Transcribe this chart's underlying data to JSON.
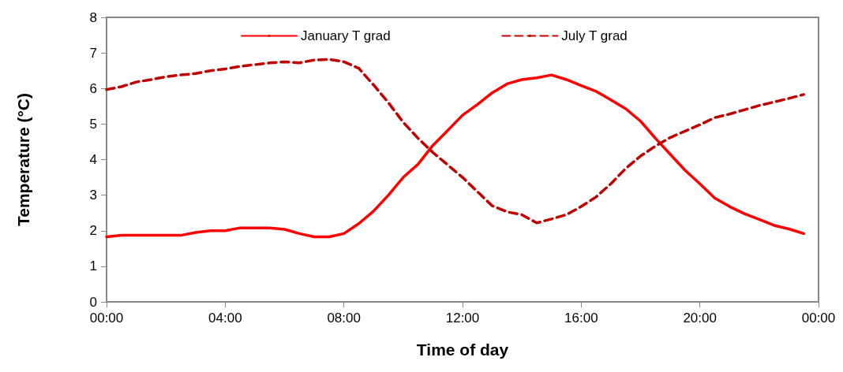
{
  "chart_data": {
    "type": "line",
    "xlabel": "Time of day",
    "ylabel": "Temperature (°C)",
    "x": [
      0,
      0.5,
      1,
      1.5,
      2,
      2.5,
      3,
      3.5,
      4,
      4.5,
      5,
      5.5,
      6,
      6.5,
      7,
      7.5,
      8,
      8.5,
      9,
      9.5,
      10,
      10.5,
      11,
      11.5,
      12,
      12.5,
      13,
      13.5,
      14,
      14.5,
      15,
      15.5,
      16,
      16.5,
      17,
      17.5,
      18,
      18.5,
      19,
      19.5,
      20,
      20.5,
      21,
      21.5,
      22,
      22.5,
      23,
      23.5
    ],
    "series": [
      {
        "name": "January T grad",
        "color": "#ff0000",
        "line_style": "solid",
        "values": [
          1.83,
          1.87,
          1.87,
          1.87,
          1.87,
          1.87,
          1.95,
          2.0,
          2.0,
          2.08,
          2.08,
          2.08,
          2.04,
          1.92,
          1.83,
          1.83,
          1.92,
          2.2,
          2.55,
          3.0,
          3.5,
          3.87,
          4.4,
          4.82,
          5.25,
          5.55,
          5.88,
          6.13,
          6.25,
          6.3,
          6.38,
          6.25,
          6.08,
          5.92,
          5.68,
          5.43,
          5.08,
          4.6,
          4.15,
          3.7,
          3.32,
          2.92,
          2.68,
          2.48,
          2.32,
          2.15,
          2.05,
          1.92
        ]
      },
      {
        "name": "July T grad",
        "color": "#c00000",
        "line_style": "dashed",
        "values": [
          5.97,
          6.05,
          6.18,
          6.25,
          6.33,
          6.38,
          6.42,
          6.5,
          6.55,
          6.62,
          6.67,
          6.72,
          6.75,
          6.72,
          6.8,
          6.82,
          6.75,
          6.57,
          6.1,
          5.6,
          5.05,
          4.6,
          4.2,
          3.85,
          3.5,
          3.1,
          2.7,
          2.53,
          2.45,
          2.22,
          2.33,
          2.45,
          2.68,
          2.95,
          3.32,
          3.75,
          4.1,
          4.38,
          4.62,
          4.8,
          4.98,
          5.18,
          5.28,
          5.4,
          5.52,
          5.62,
          5.72,
          5.83
        ]
      }
    ],
    "xlim": [
      0,
      24
    ],
    "xticks": [
      {
        "value": 0,
        "label": "00:00"
      },
      {
        "value": 4,
        "label": "04:00"
      },
      {
        "value": 8,
        "label": "08:00"
      },
      {
        "value": 12,
        "label": "12:00"
      },
      {
        "value": 16,
        "label": "16:00"
      },
      {
        "value": 20,
        "label": "20:00"
      },
      {
        "value": 24,
        "label": "00:00"
      }
    ],
    "ylim": [
      0,
      8
    ],
    "yticks": [
      0,
      1,
      2,
      3,
      4,
      5,
      6,
      7,
      8
    ],
    "grid": false,
    "legend": "top",
    "marker": "none"
  }
}
